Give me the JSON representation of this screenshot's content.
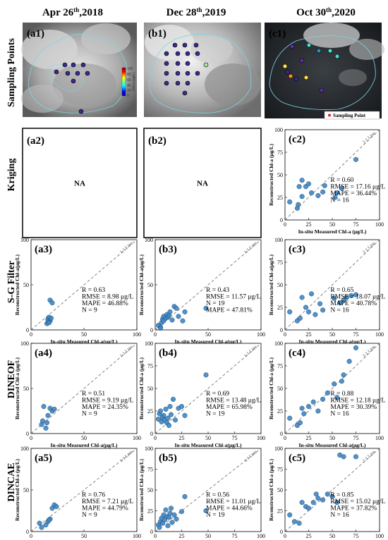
{
  "column_titles": [
    {
      "main": "Apr 26",
      "sup": "th",
      "year": ",2018"
    },
    {
      "main": "Dec 28",
      "sup": "th",
      "year": ",2019"
    },
    {
      "main": "Oct 30",
      "sup": "th",
      "year": ",2020"
    }
  ],
  "row_titles": [
    "Sampling Points",
    "Kriging",
    "S-G Filter",
    "DINEOF",
    "DINCAE"
  ],
  "map_labels": [
    "(a1)",
    "(b1)",
    "(c1)"
  ],
  "map_legend": "Sampling Point",
  "colorbar": {
    "label": "Chl-a (μg/L)",
    "ticks": [
      "100",
      "80",
      "60",
      "40",
      "20",
      "0"
    ]
  },
  "na_text": "NA",
  "one_to_one_label": "1:1 Line",
  "colors": {
    "marker": "#3f86c2",
    "marker_edge": "#1f4e79",
    "dashed": "#777777"
  },
  "chart_data": [
    {
      "id": "a2",
      "type": "scatter",
      "label": "(a2)",
      "na": true
    },
    {
      "id": "b2",
      "type": "scatter",
      "label": "(b2)",
      "na": true
    },
    {
      "id": "c2",
      "type": "scatter",
      "label": "(c2)",
      "xlabel": "In-situ Measured Chl-a (μg/L)",
      "ylabel": "Reconstructed Chl-a (μg/L)",
      "xlim": [
        0,
        100
      ],
      "ylim": [
        0,
        100
      ],
      "ticks": [
        "0",
        "25",
        "50",
        "75",
        "100"
      ],
      "stats": [
        "R = 0.60",
        "RMSE = 17.16 μg/L",
        "MAPE = 36.44%",
        "N = 16"
      ],
      "points": [
        [
          5,
          20
        ],
        [
          13,
          13
        ],
        [
          14,
          17
        ],
        [
          15,
          37
        ],
        [
          18,
          44
        ],
        [
          18,
          26
        ],
        [
          22,
          37
        ],
        [
          25,
          40
        ],
        [
          28,
          30
        ],
        [
          35,
          27
        ],
        [
          40,
          31
        ],
        [
          42,
          38
        ],
        [
          53,
          25
        ],
        [
          55,
          30
        ],
        [
          60,
          35
        ],
        [
          75,
          67
        ]
      ]
    },
    {
      "id": "a3",
      "type": "scatter",
      "label": "(a3)",
      "xlabel": "In-situ Measured Chl-a(μg/L)",
      "ylabel": "Reconstructed Chl-a(μg/L)",
      "xlim": [
        0,
        100
      ],
      "ylim": [
        0,
        100
      ],
      "ticks": [
        "0",
        "50",
        "100"
      ],
      "stats": [
        "R = 0.63",
        "RMSE = 8.98 μg/L",
        "MAPE = 46.88%",
        "N = 9"
      ],
      "points": [
        [
          15,
          7
        ],
        [
          16,
          12
        ],
        [
          17,
          14
        ],
        [
          18,
          10
        ],
        [
          18,
          33
        ],
        [
          20,
          30
        ],
        [
          16,
          9
        ],
        [
          19,
          13
        ],
        [
          17,
          8
        ]
      ]
    },
    {
      "id": "b3",
      "type": "scatter",
      "label": "(b3)",
      "xlabel": "In-situ Measured Chl-a(μg/L)",
      "ylabel": "Reconstructed Chl-a(μg/L)",
      "xlim": [
        0,
        100
      ],
      "ylim": [
        0,
        100
      ],
      "ticks": [
        "0",
        "50",
        "100"
      ],
      "stats": [
        "R = 0.43",
        "RMSE = 11.57 μg/L",
        "N = 19",
        "MAPE = 47.81%"
      ],
      "points": [
        [
          3,
          5
        ],
        [
          5,
          3
        ],
        [
          6,
          8
        ],
        [
          7,
          12
        ],
        [
          8,
          10
        ],
        [
          8,
          15
        ],
        [
          10,
          13
        ],
        [
          11,
          17
        ],
        [
          12,
          14
        ],
        [
          13,
          16
        ],
        [
          14,
          20
        ],
        [
          16,
          11
        ],
        [
          18,
          26
        ],
        [
          20,
          24
        ],
        [
          22,
          15
        ],
        [
          26,
          10
        ],
        [
          28,
          20
        ],
        [
          48,
          24
        ],
        [
          5,
          2
        ]
      ]
    },
    {
      "id": "c3",
      "type": "scatter",
      "label": "(c3)",
      "xlabel": "In-situ Measured Chl-a(μg/L)",
      "ylabel": "Reconstructed Chl-a(μg/L)",
      "xlim": [
        0,
        100
      ],
      "ylim": [
        0,
        100
      ],
      "ticks": [
        "0",
        "25",
        "50",
        "75",
        "100"
      ],
      "stats": [
        "R = 0.65",
        "RMSE = 18.07 μg/L",
        "MAPE = 40.78%",
        "N = 16"
      ],
      "points": [
        [
          5,
          20
        ],
        [
          13,
          10
        ],
        [
          16,
          13
        ],
        [
          18,
          36
        ],
        [
          22,
          25
        ],
        [
          25,
          20
        ],
        [
          28,
          40
        ],
        [
          32,
          17
        ],
        [
          37,
          29
        ],
        [
          40,
          22
        ],
        [
          52,
          35
        ],
        [
          58,
          30
        ],
        [
          62,
          33
        ],
        [
          65,
          36
        ],
        [
          70,
          38
        ],
        [
          75,
          39
        ]
      ]
    },
    {
      "id": "a4",
      "type": "scatter",
      "label": "(a4)",
      "xlabel": "In-situ Measured Chl-a(μg/L)",
      "ylabel": "Reconstructed Chl-a (μg/L)",
      "xlim": [
        0,
        100
      ],
      "ylim": [
        0,
        100
      ],
      "ticks": [
        "0",
        "50",
        "100"
      ],
      "stats": [
        "R = 0.51",
        "RMSE = 9.19 μg/L",
        "MAPE = 24.35%",
        "N = 9"
      ],
      "points": [
        [
          10,
          10
        ],
        [
          11,
          14
        ],
        [
          12,
          30
        ],
        [
          14,
          6
        ],
        [
          15,
          12
        ],
        [
          16,
          20
        ],
        [
          18,
          28
        ],
        [
          20,
          25
        ],
        [
          22,
          27
        ]
      ]
    },
    {
      "id": "b4",
      "type": "scatter",
      "label": "(b4)",
      "xlabel": "In-situ Measured Chl-a(μg/L)",
      "ylabel": "Reconstructed Chl-a (μg/L)",
      "xlim": [
        0,
        100
      ],
      "ylim": [
        0,
        100
      ],
      "ticks": [
        "0",
        "25",
        "50",
        "75",
        "100"
      ],
      "stats": [
        "R = 0.69",
        "RMSE = 13.48 μg/L",
        "MAPE = 65.98%",
        "N = 19"
      ],
      "points": [
        [
          3,
          16
        ],
        [
          4,
          22
        ],
        [
          5,
          25
        ],
        [
          6,
          13
        ],
        [
          7,
          18
        ],
        [
          8,
          20
        ],
        [
          9,
          15
        ],
        [
          10,
          27
        ],
        [
          11,
          12
        ],
        [
          12,
          17
        ],
        [
          13,
          9
        ],
        [
          14,
          30
        ],
        [
          15,
          21
        ],
        [
          17,
          38
        ],
        [
          19,
          15
        ],
        [
          22,
          28
        ],
        [
          25,
          30
        ],
        [
          28,
          20
        ],
        [
          48,
          65
        ]
      ]
    },
    {
      "id": "c4",
      "type": "scatter",
      "label": "(c4)",
      "xlabel": "In-situ Measured Chl-a(μg/L)",
      "ylabel": "Reconstructed Chl-a (μg/L)",
      "xlim": [
        0,
        100
      ],
      "ylim": [
        0,
        100
      ],
      "ticks": [
        "0",
        "25",
        "50",
        "75",
        "100"
      ],
      "stats": [
        "R = 0.88",
        "RMSE = 12.18 μg/L",
        "MAPE = 30.39%",
        "N = 16"
      ],
      "points": [
        [
          5,
          17
        ],
        [
          13,
          9
        ],
        [
          16,
          12
        ],
        [
          18,
          28
        ],
        [
          20,
          22
        ],
        [
          25,
          30
        ],
        [
          30,
          35
        ],
        [
          35,
          25
        ],
        [
          40,
          38
        ],
        [
          45,
          45
        ],
        [
          52,
          55
        ],
        [
          55,
          40
        ],
        [
          60,
          58
        ],
        [
          62,
          65
        ],
        [
          68,
          80
        ],
        [
          75,
          95
        ]
      ]
    },
    {
      "id": "a5",
      "type": "scatter",
      "label": "(a5)",
      "xlabel": "In-situ Measured Chl-a(μg/L)",
      "ylabel": "Reconstructed Chl-a (μg/L)",
      "xlim": [
        0,
        100
      ],
      "ylim": [
        0,
        100
      ],
      "ticks": [
        "0",
        "50",
        "100"
      ],
      "stats": [
        "R = 0.76",
        "RMSE = 7.21 μg/L",
        "MAPE = 44.79%",
        "N = 9"
      ],
      "points": [
        [
          8,
          10
        ],
        [
          10,
          5
        ],
        [
          14,
          8
        ],
        [
          16,
          12
        ],
        [
          18,
          15
        ],
        [
          20,
          28
        ],
        [
          22,
          32
        ],
        [
          24,
          30
        ],
        [
          17,
          14
        ]
      ]
    },
    {
      "id": "b5",
      "type": "scatter",
      "label": "(b5)",
      "xlabel": "In-situ Measured Chl-a(μg/L)",
      "ylabel": "Reconstructed Chl-a (μg/L)",
      "xlim": [
        0,
        100
      ],
      "ylim": [
        0,
        100
      ],
      "ticks": [
        "0",
        "25",
        "50",
        "75",
        "100"
      ],
      "stats": [
        "R = 0.56",
        "RMSE = 11.01 μg/L",
        "MAPE = 44.66%",
        "N = 19"
      ],
      "points": [
        [
          3,
          8
        ],
        [
          4,
          5
        ],
        [
          5,
          12
        ],
        [
          6,
          16
        ],
        [
          7,
          10
        ],
        [
          8,
          20
        ],
        [
          9,
          14
        ],
        [
          10,
          26
        ],
        [
          11,
          18
        ],
        [
          12,
          7
        ],
        [
          13,
          17
        ],
        [
          14,
          22
        ],
        [
          15,
          28
        ],
        [
          16,
          11
        ],
        [
          18,
          20
        ],
        [
          20,
          15
        ],
        [
          25,
          24
        ],
        [
          28,
          42
        ],
        [
          48,
          25
        ]
      ]
    },
    {
      "id": "c5",
      "type": "scatter",
      "label": "(c5)",
      "xlabel": "In-situ Measured Chl-a(μg/L)",
      "ylabel": "Reconstructed Chl-a (μg/L)",
      "xlim": [
        0,
        100
      ],
      "ylim": [
        0,
        100
      ],
      "ticks": [
        "0",
        "25",
        "50",
        "75",
        "100"
      ],
      "stats": [
        "R = 0.85",
        "RMSE = 15.02 μg/L",
        "MAPE = 37.82%",
        "N = 16"
      ],
      "points": [
        [
          5,
          20
        ],
        [
          10,
          12
        ],
        [
          15,
          10
        ],
        [
          18,
          35
        ],
        [
          22,
          30
        ],
        [
          25,
          28
        ],
        [
          30,
          35
        ],
        [
          33,
          45
        ],
        [
          35,
          40
        ],
        [
          40,
          38
        ],
        [
          45,
          45
        ],
        [
          50,
          42
        ],
        [
          55,
          35
        ],
        [
          58,
          92
        ],
        [
          62,
          90
        ],
        [
          75,
          90
        ]
      ]
    }
  ]
}
